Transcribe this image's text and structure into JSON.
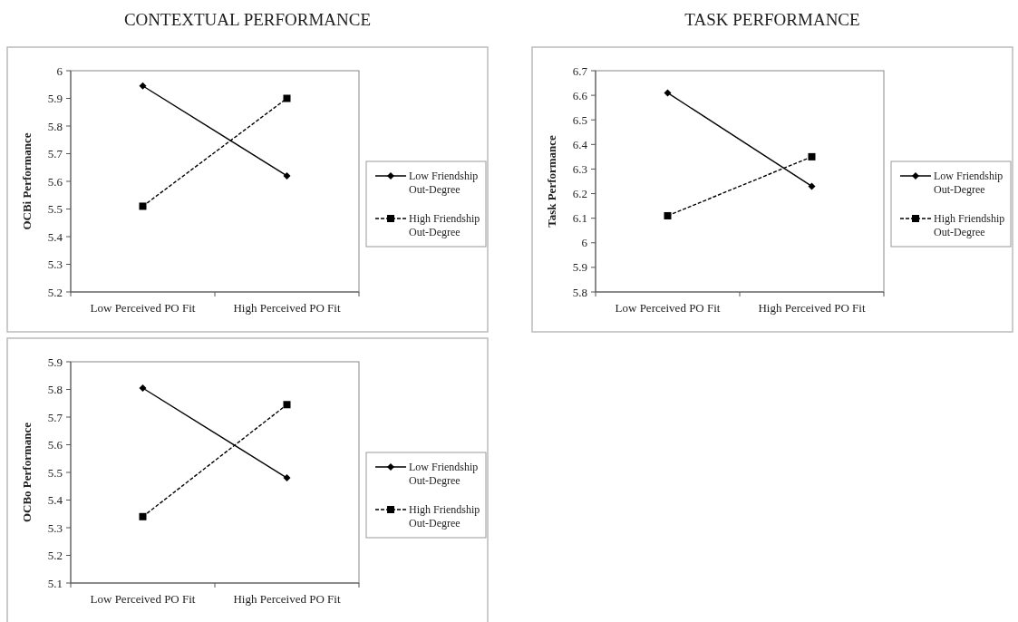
{
  "chart_data": [
    {
      "type": "line",
      "title": "CONTEXTUAL PERFORMANCE",
      "ylabel": "OCBi Performance",
      "categories": [
        "Low Perceived PO Fit",
        "High Perceived PO Fit"
      ],
      "ylim": [
        5.2,
        6
      ],
      "yticks": [
        5.2,
        5.3,
        5.4,
        5.5,
        5.6,
        5.7,
        5.8,
        5.9,
        6
      ],
      "grid": false,
      "legend": "right",
      "series": [
        {
          "name": "Low Friendship Out-Degree",
          "color": "#000000",
          "values": [
            5.945,
            5.62
          ],
          "marker": "diamond",
          "line_style": "solid"
        },
        {
          "name": "High Friendship Out-Degree",
          "color": "#000000",
          "values": [
            5.51,
            5.9
          ],
          "marker": "square",
          "line_style": "dashed"
        }
      ]
    },
    {
      "type": "line",
      "title": "TASK PERFORMANCE",
      "ylabel": "Task Performance",
      "categories": [
        "Low Perceived PO Fit",
        "High Perceived PO Fit"
      ],
      "ylim": [
        5.8,
        6.7
      ],
      "yticks": [
        5.8,
        5.9,
        6,
        6.1,
        6.2,
        6.3,
        6.4,
        6.5,
        6.6,
        6.7
      ],
      "grid": false,
      "legend": "right",
      "series": [
        {
          "name": "Low Friendship Out-Degree",
          "color": "#000000",
          "values": [
            6.61,
            6.23
          ],
          "marker": "diamond",
          "line_style": "solid"
        },
        {
          "name": "High Friendship Out-Degree",
          "color": "#000000",
          "values": [
            6.11,
            6.35
          ],
          "marker": "square",
          "line_style": "dashed"
        }
      ]
    },
    {
      "type": "line",
      "ylabel": "OCBo Performance",
      "categories": [
        "Low Perceived PO Fit",
        "High Perceived PO Fit"
      ],
      "ylim": [
        5.1,
        5.9
      ],
      "yticks": [
        5.1,
        5.2,
        5.3,
        5.4,
        5.5,
        5.6,
        5.7,
        5.8,
        5.9
      ],
      "grid": false,
      "legend": "right",
      "series": [
        {
          "name": "Low Friendship Out-Degree",
          "color": "#000000",
          "values": [
            5.805,
            5.48
          ],
          "marker": "diamond",
          "line_style": "solid"
        },
        {
          "name": "High Friendship Out-Degree",
          "color": "#000000",
          "values": [
            5.34,
            5.745
          ],
          "marker": "square",
          "line_style": "dashed"
        }
      ]
    }
  ]
}
